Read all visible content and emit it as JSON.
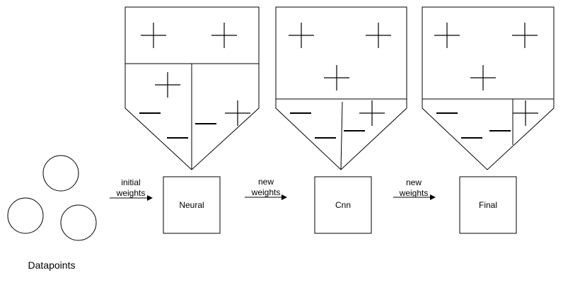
{
  "datapoints_label": "Datapoints",
  "nodes": [
    {
      "name": "Neural"
    },
    {
      "name": "Cnn"
    },
    {
      "name": "Final"
    }
  ],
  "arrows": [
    {
      "line1": "initial",
      "line2": "weights"
    },
    {
      "line1": "new",
      "line2": "weights"
    },
    {
      "line1": "new",
      "line2": "weights"
    }
  ],
  "colors": {
    "stroke": "#000000",
    "background": "#ffffff"
  }
}
